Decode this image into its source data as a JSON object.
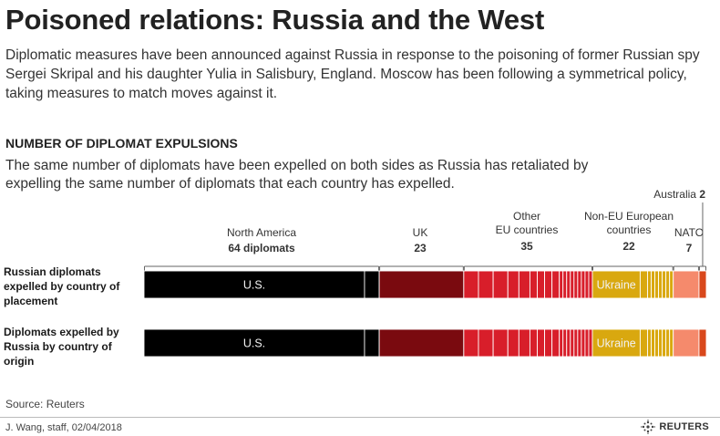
{
  "header": {
    "title": "Poisoned relations: Russia and the West",
    "subtitle": "Diplomatic measures have been announced against Russia in response to the poisoning of former Russian spy Sergei Skripal and his daughter Yulia in Salisbury, England. Moscow has been following a symmetrical policy, taking measures to match moves against it."
  },
  "section": {
    "title": "NUMBER OF DIPLOMAT EXPULSIONS",
    "description": "The same number of diplomats have been expelled on both sides as Russia has retaliated by expelling the same number of diplomats that each country has expelled."
  },
  "chart_data": {
    "type": "bar",
    "orientation": "horizontal-stacked",
    "total": 153,
    "rows": [
      {
        "label": "Russian diplomats expelled by country of placement"
      },
      {
        "label": "Diplomats expelled by Russia by country of origin"
      }
    ],
    "groups": [
      {
        "name": "North America",
        "value_text": "64 diplomats",
        "value": 64,
        "color": "#000000",
        "segments": [
          60,
          4
        ],
        "segment_labels": [
          "U.S.",
          ""
        ]
      },
      {
        "name": "UK",
        "value_text": "23",
        "value": 23,
        "color": "#7a0a0f",
        "segments": [
          23
        ],
        "segment_labels": [
          ""
        ]
      },
      {
        "name": "Other EU countries",
        "value_text": "35",
        "value": 35,
        "color": "#d81e2a",
        "segments": [
          4,
          4,
          4,
          3,
          3,
          2,
          2,
          2,
          2,
          1,
          1,
          1,
          1,
          1,
          1,
          1,
          1,
          1
        ],
        "segment_labels": []
      },
      {
        "name": "Non-EU European countries",
        "value_text": "22",
        "value": 22,
        "color": "#d9a80f",
        "segments": [
          13,
          2,
          1,
          1,
          1,
          1,
          1,
          1,
          1
        ],
        "segment_labels": [
          "Ukraine"
        ]
      },
      {
        "name": "NATO",
        "value_text": "7",
        "value": 7,
        "color": "#f58a6c",
        "segments": [
          7
        ],
        "segment_labels": [
          ""
        ]
      },
      {
        "name": "Australia",
        "value_text": "2",
        "value": 2,
        "color": "#d9481c",
        "segments": [
          2
        ],
        "segment_labels": [
          ""
        ]
      }
    ]
  },
  "footer": {
    "source": "Source: Reuters",
    "credit": "J. Wang, staff,  02/04/2018",
    "logo_text": "REUTERS"
  }
}
